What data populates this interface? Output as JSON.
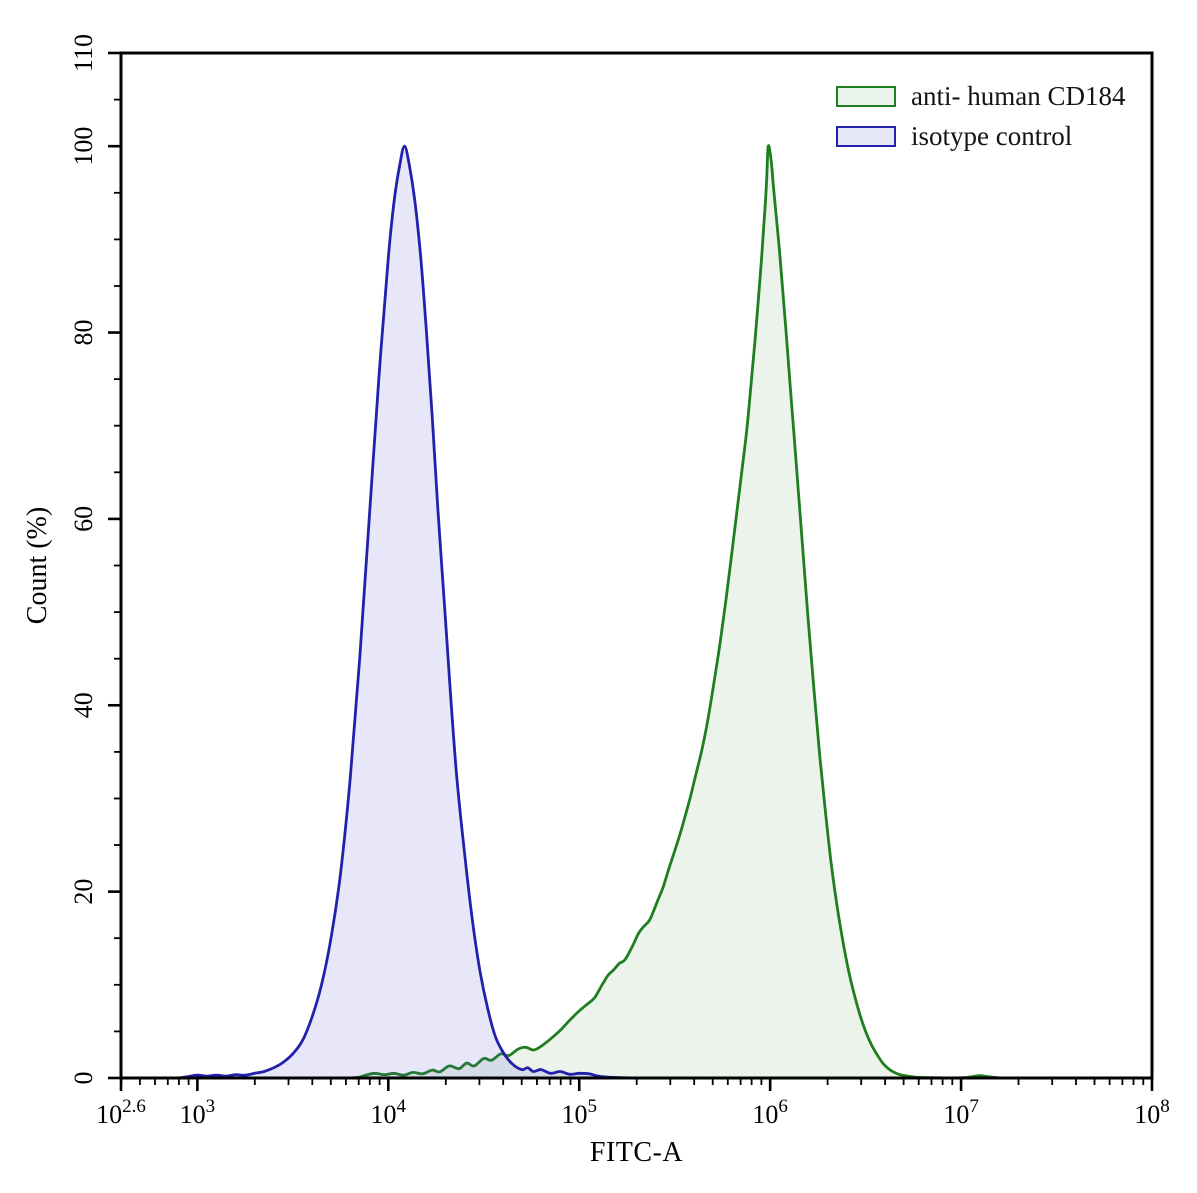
{
  "chart_data": {
    "type": "area",
    "title": "",
    "xlabel": "FITC-A",
    "ylabel": "Count (%)",
    "x_scale": "log10",
    "xlim_log10": [
      2.6,
      8
    ],
    "ylim": [
      0,
      110
    ],
    "grid": false,
    "axis_color": "#000000",
    "legend_position": "top-right-inside",
    "x_major_ticks": [
      {
        "log10": 2.6,
        "base": "10",
        "exp": "2.6"
      },
      {
        "log10": 3,
        "base": "10",
        "exp": "3"
      },
      {
        "log10": 4,
        "base": "10",
        "exp": "4"
      },
      {
        "log10": 5,
        "base": "10",
        "exp": "5"
      },
      {
        "log10": 6,
        "base": "10",
        "exp": "6"
      },
      {
        "log10": 7,
        "base": "10",
        "exp": "7"
      },
      {
        "log10": 8,
        "base": "10",
        "exp": "8"
      }
    ],
    "y_major_ticks": [
      0,
      20,
      40,
      60,
      80,
      100,
      110
    ],
    "y_minor_step": 5,
    "series": [
      {
        "name": "anti- human CD184",
        "stroke": "#1f7e1f",
        "fill": "rgba(60, 140, 60, 0.10)",
        "legend_fill": "#eaf3ea",
        "peak_log10_x": 5.99,
        "peak_percent": 100,
        "points": [
          [
            3.8,
            0
          ],
          [
            3.85,
            0.1
          ],
          [
            3.88,
            0.3
          ],
          [
            3.93,
            0.5
          ],
          [
            3.98,
            0.35
          ],
          [
            4.03,
            0.5
          ],
          [
            4.08,
            0.3
          ],
          [
            4.13,
            0.6
          ],
          [
            4.18,
            0.45
          ],
          [
            4.23,
            0.85
          ],
          [
            4.27,
            0.65
          ],
          [
            4.32,
            1.3
          ],
          [
            4.37,
            1.0
          ],
          [
            4.41,
            1.6
          ],
          [
            4.45,
            1.3
          ],
          [
            4.5,
            2.1
          ],
          [
            4.54,
            1.9
          ],
          [
            4.59,
            2.6
          ],
          [
            4.63,
            2.4
          ],
          [
            4.68,
            3.1
          ],
          [
            4.72,
            3.3
          ],
          [
            4.76,
            3.0
          ],
          [
            4.8,
            3.4
          ],
          [
            4.85,
            4.2
          ],
          [
            4.9,
            5.1
          ],
          [
            4.95,
            6.2
          ],
          [
            5.0,
            7.2
          ],
          [
            5.04,
            7.9
          ],
          [
            5.08,
            8.6
          ],
          [
            5.12,
            10
          ],
          [
            5.15,
            11
          ],
          [
            5.18,
            11.6
          ],
          [
            5.21,
            12.3
          ],
          [
            5.24,
            12.7
          ],
          [
            5.28,
            14.2
          ],
          [
            5.31,
            15.5
          ],
          [
            5.34,
            16.3
          ],
          [
            5.37,
            17
          ],
          [
            5.41,
            19
          ],
          [
            5.44,
            20.5
          ],
          [
            5.47,
            22.5
          ],
          [
            5.51,
            25
          ],
          [
            5.54,
            27
          ],
          [
            5.58,
            30
          ],
          [
            5.61,
            32.5
          ],
          [
            5.64,
            35
          ],
          [
            5.67,
            38
          ],
          [
            5.71,
            43
          ],
          [
            5.74,
            47
          ],
          [
            5.77,
            51.5
          ],
          [
            5.8,
            56.5
          ],
          [
            5.83,
            61.5
          ],
          [
            5.86,
            66.5
          ],
          [
            5.88,
            70
          ],
          [
            5.9,
            74.5
          ],
          [
            5.92,
            79
          ],
          [
            5.94,
            84
          ],
          [
            5.955,
            88
          ],
          [
            5.967,
            91.5
          ],
          [
            5.975,
            94
          ],
          [
            5.982,
            96.5
          ],
          [
            5.99,
            100
          ],
          [
            6.005,
            98.5
          ],
          [
            6.02,
            95
          ],
          [
            6.05,
            88.5
          ],
          [
            6.08,
            81
          ],
          [
            6.11,
            73
          ],
          [
            6.14,
            65
          ],
          [
            6.17,
            57
          ],
          [
            6.2,
            49
          ],
          [
            6.23,
            41.5
          ],
          [
            6.26,
            34.5
          ],
          [
            6.29,
            28.5
          ],
          [
            6.32,
            23
          ],
          [
            6.35,
            18.5
          ],
          [
            6.38,
            14.8
          ],
          [
            6.41,
            11.6
          ],
          [
            6.44,
            9
          ],
          [
            6.47,
            6.8
          ],
          [
            6.5,
            5
          ],
          [
            6.53,
            3.6
          ],
          [
            6.56,
            2.5
          ],
          [
            6.59,
            1.6
          ],
          [
            6.62,
            1
          ],
          [
            6.65,
            0.6
          ],
          [
            6.68,
            0.35
          ],
          [
            6.72,
            0.2
          ],
          [
            6.76,
            0.1
          ],
          [
            6.8,
            0.05
          ],
          [
            7.0,
            0.02
          ],
          [
            7.06,
            0.15
          ],
          [
            7.1,
            0.25
          ],
          [
            7.14,
            0.15
          ],
          [
            7.18,
            0.05
          ],
          [
            7.22,
            0
          ]
        ]
      },
      {
        "name": "isotype control",
        "stroke": "#2121ad",
        "fill": "rgba(85, 85, 210, 0.14)",
        "legend_fill": "#e5e6f8",
        "peak_log10_x": 4.085,
        "peak_percent": 100,
        "points": [
          [
            2.9,
            0
          ],
          [
            2.95,
            0.15
          ],
          [
            3.0,
            0.3
          ],
          [
            3.05,
            0.2
          ],
          [
            3.1,
            0.3
          ],
          [
            3.15,
            0.2
          ],
          [
            3.2,
            0.35
          ],
          [
            3.25,
            0.3
          ],
          [
            3.3,
            0.5
          ],
          [
            3.35,
            0.7
          ],
          [
            3.4,
            1.1
          ],
          [
            3.45,
            1.7
          ],
          [
            3.5,
            2.6
          ],
          [
            3.55,
            4
          ],
          [
            3.6,
            6.5
          ],
          [
            3.65,
            10
          ],
          [
            3.7,
            15
          ],
          [
            3.75,
            22
          ],
          [
            3.8,
            32
          ],
          [
            3.85,
            45
          ],
          [
            3.9,
            60
          ],
          [
            3.95,
            75
          ],
          [
            4.0,
            88
          ],
          [
            4.03,
            94
          ],
          [
            4.06,
            98
          ],
          [
            4.085,
            100
          ],
          [
            4.11,
            98
          ],
          [
            4.14,
            94
          ],
          [
            4.17,
            88
          ],
          [
            4.2,
            80
          ],
          [
            4.23,
            71
          ],
          [
            4.26,
            61
          ],
          [
            4.3,
            49
          ],
          [
            4.33,
            40
          ],
          [
            4.36,
            32
          ],
          [
            4.4,
            24
          ],
          [
            4.44,
            17
          ],
          [
            4.48,
            11.5
          ],
          [
            4.52,
            7.5
          ],
          [
            4.56,
            4.5
          ],
          [
            4.6,
            2.8
          ],
          [
            4.65,
            1.5
          ],
          [
            4.7,
            0.9
          ],
          [
            4.73,
            1.1
          ],
          [
            4.76,
            0.7
          ],
          [
            4.8,
            0.9
          ],
          [
            4.85,
            0.5
          ],
          [
            4.9,
            0.7
          ],
          [
            4.95,
            0.4
          ],
          [
            5.0,
            0.5
          ],
          [
            5.05,
            0.45
          ],
          [
            5.1,
            0.2
          ],
          [
            5.15,
            0.1
          ],
          [
            5.2,
            0.05
          ],
          [
            5.3,
            0
          ]
        ]
      }
    ]
  }
}
